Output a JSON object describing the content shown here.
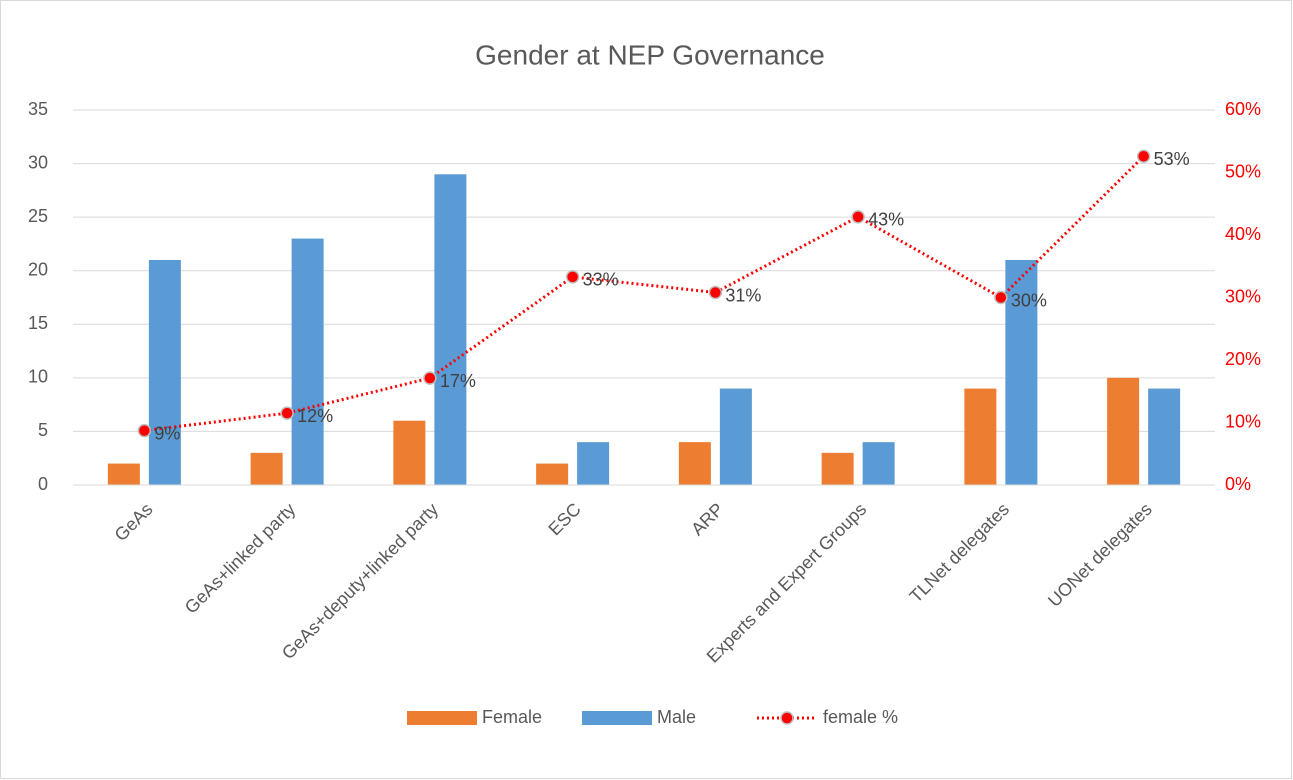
{
  "chart_data": {
    "type": "bar",
    "title": "Gender at NEP Governance",
    "categories": [
      "GeAs",
      "GeAs+linked party",
      "GeAs+deputy+linked party",
      "ESC",
      "ARP",
      "Experts and Expert Groups",
      "TLNet delegates",
      "UONet delegates"
    ],
    "series": [
      {
        "name": "Female",
        "color": "#ed7d31",
        "values": [
          2,
          3,
          6,
          2,
          4,
          3,
          9,
          10
        ]
      },
      {
        "name": "Male",
        "color": "#5b9bd5",
        "values": [
          21,
          23,
          29,
          4,
          9,
          4,
          21,
          9
        ]
      },
      {
        "name": "female %",
        "type": "line",
        "axis": "y2",
        "color": "#ff0000",
        "values": [
          8.7,
          11.5,
          17.1,
          33.3,
          30.8,
          42.9,
          30,
          52.6
        ],
        "value_labels": [
          "9%",
          "12%",
          "17%",
          "33%",
          "31%",
          "43%",
          "30%",
          "53%"
        ]
      }
    ],
    "ylim": [
      0,
      35
    ],
    "yticks": [
      0,
      5,
      10,
      15,
      20,
      25,
      30,
      35
    ],
    "y2lim": [
      0,
      60
    ],
    "y2ticks": [
      {
        "value": 0,
        "label": "0%"
      },
      {
        "value": 10,
        "label": "10%"
      },
      {
        "value": 20,
        "label": "20%"
      },
      {
        "value": 30,
        "label": "30%"
      },
      {
        "value": 40,
        "label": "40%"
      },
      {
        "value": 50,
        "label": "50%"
      },
      {
        "value": 60,
        "label": "60%"
      }
    ],
    "grid": true,
    "legend": "bottom"
  }
}
